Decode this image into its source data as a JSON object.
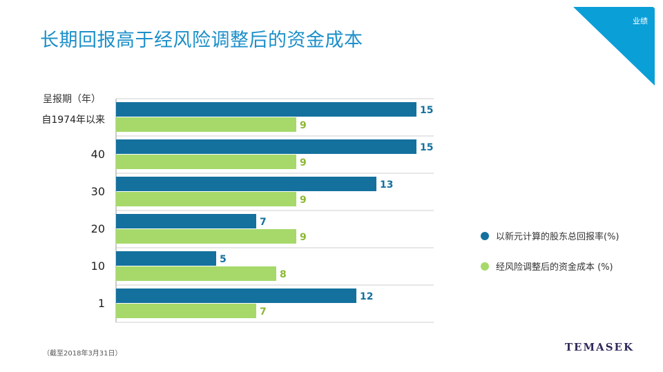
{
  "header": {
    "title": "长期回报高于经风险调整后的资金成本",
    "section": "业绩"
  },
  "colors": {
    "tsr": "#14719e",
    "cost": "#a6d96a",
    "cost_label": "#8cb832",
    "title": "#1c8fc9",
    "corner": "#0b9fd8"
  },
  "chart_data": {
    "type": "bar",
    "orientation": "horizontal",
    "y_header": [
      "呈报期（年）",
      "自1974年以来"
    ],
    "categories": [
      "自1974年以来",
      "40",
      "30",
      "20",
      "10",
      "1"
    ],
    "series": [
      {
        "name": "以新元计算的股东总回报率(%)",
        "values": [
          15,
          15,
          13,
          7,
          5,
          12
        ]
      },
      {
        "name": "经风险调整后的资金成本 (%)",
        "values": [
          9,
          9,
          9,
          9,
          8,
          7
        ]
      }
    ],
    "xlim": [
      0,
      16
    ],
    "legend_position": "right"
  },
  "footer": {
    "note": "（截至2018年3月31日）",
    "logo": "TEMASEK"
  }
}
